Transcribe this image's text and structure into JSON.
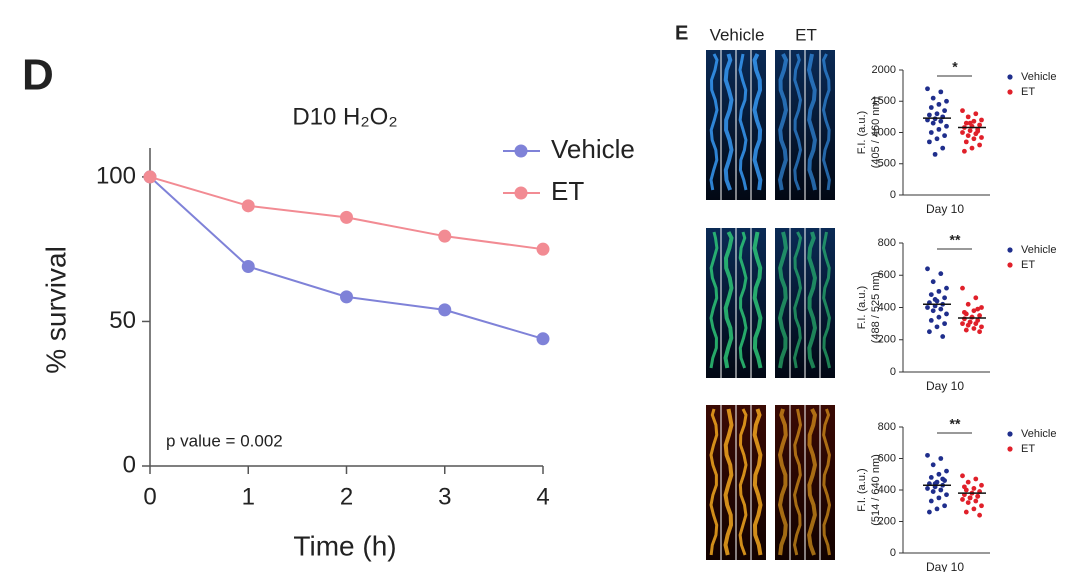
{
  "panel_labels": [
    "D",
    "E"
  ],
  "image_labels": [
    "Vehicle",
    "ET"
  ],
  "chart_data": [
    {
      "type": "line",
      "title": "D10 H₂O₂",
      "xlabel": "Time (h)",
      "ylabel": "% survival",
      "annotation": "p value = 0.002",
      "x": [
        0,
        1,
        2,
        3,
        4
      ],
      "series": [
        {
          "name": "Vehicle",
          "color": "#7f82d8",
          "values": [
            100,
            69,
            58.5,
            54,
            44
          ]
        },
        {
          "name": "ET",
          "color": "#f28b93",
          "values": [
            100,
            90,
            86,
            79.5,
            75
          ]
        }
      ],
      "xlim": [
        0,
        4
      ],
      "xticks": [
        0,
        1,
        2,
        3,
        4
      ],
      "ylim": [
        0,
        110
      ],
      "yticks": [
        0,
        50,
        100
      ]
    },
    {
      "type": "strip",
      "ylabel": [
        "F.I. (a.u.)",
        "(405 / 460 nm)"
      ],
      "categories": [
        "Day 10"
      ],
      "significance": "*",
      "series": [
        {
          "name": "Vehicle",
          "color": "#1f2e8c",
          "mean": 1230,
          "values": [
            1700,
            1650,
            1550,
            1500,
            1450,
            1400,
            1350,
            1300,
            1280,
            1250,
            1220,
            1200,
            1180,
            1150,
            1100,
            1050,
            1000,
            950,
            900,
            850,
            750,
            650
          ]
        },
        {
          "name": "ET",
          "color": "#e0202a",
          "mean": 1080,
          "values": [
            1350,
            1300,
            1250,
            1200,
            1180,
            1150,
            1120,
            1100,
            1080,
            1050,
            1030,
            1000,
            980,
            950,
            920,
            900,
            850,
            800,
            750,
            700,
            1020,
            1150
          ]
        }
      ],
      "ylim": [
        0,
        2000
      ],
      "yticks": [
        0,
        500,
        1000,
        1500,
        2000
      ]
    },
    {
      "type": "strip",
      "ylabel": [
        "F.I. (a.u.)",
        "(488 / 525 nm)"
      ],
      "categories": [
        "Day 10"
      ],
      "significance": "**",
      "series": [
        {
          "name": "Vehicle",
          "color": "#1f2e8c",
          "mean": 420,
          "values": [
            640,
            610,
            560,
            520,
            500,
            480,
            460,
            440,
            430,
            420,
            410,
            400,
            390,
            380,
            360,
            340,
            320,
            300,
            280,
            250,
            220,
            450
          ]
        },
        {
          "name": "ET",
          "color": "#e0202a",
          "mean": 335,
          "values": [
            520,
            460,
            420,
            400,
            380,
            360,
            350,
            340,
            330,
            320,
            310,
            300,
            300,
            290,
            280,
            270,
            260,
            250,
            340,
            370,
            390,
            310
          ]
        }
      ],
      "ylim": [
        0,
        800
      ],
      "yticks": [
        0,
        200,
        400,
        600,
        800
      ]
    },
    {
      "type": "strip",
      "ylabel": [
        "F.I. (a.u.)",
        "(514 / 640 nm)"
      ],
      "categories": [
        "Day 10"
      ],
      "significance": "**",
      "series": [
        {
          "name": "Vehicle",
          "color": "#1f2e8c",
          "mean": 430,
          "values": [
            620,
            600,
            560,
            520,
            500,
            480,
            460,
            450,
            440,
            430,
            420,
            410,
            400,
            390,
            370,
            350,
            330,
            300,
            280,
            260,
            470,
            440
          ]
        },
        {
          "name": "ET",
          "color": "#e0202a",
          "mean": 380,
          "values": [
            490,
            470,
            450,
            430,
            410,
            400,
            390,
            380,
            370,
            360,
            350,
            340,
            330,
            320,
            300,
            280,
            260,
            240,
            380,
            420,
            360,
            350
          ]
        }
      ],
      "ylim": [
        0,
        800
      ],
      "yticks": [
        0,
        200,
        400,
        600,
        800
      ]
    }
  ]
}
